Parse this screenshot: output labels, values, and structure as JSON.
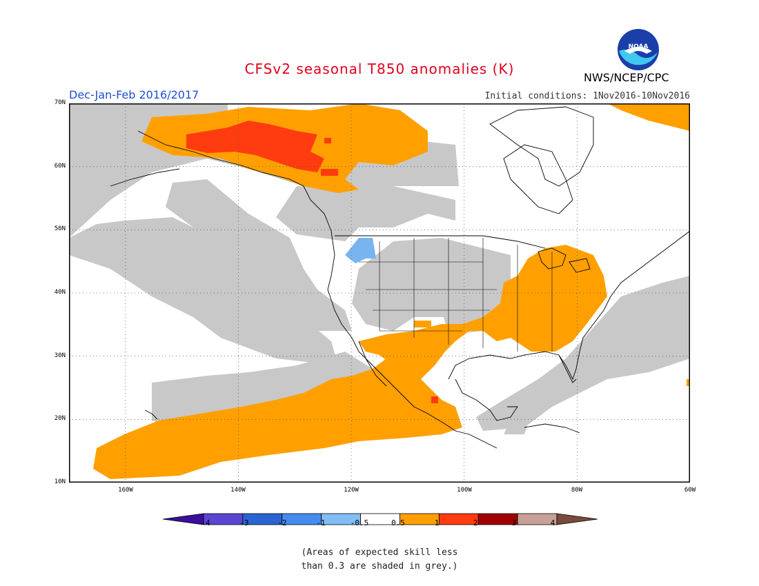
{
  "header": {
    "title": "CFSv2 seasonal T850 anomalies (K)",
    "agency": "NWS/NCEP/CPC",
    "logo_text": "NOAA",
    "period": "Dec-Jan-Feb 2016/2017",
    "initial_conditions": "Initial conditions: 1Nov2016-10Nov2016"
  },
  "map": {
    "lat_labels": [
      "70N",
      "60N",
      "50N",
      "40N",
      "30N",
      "20N",
      "10N"
    ],
    "lon_labels": [
      "160W",
      "140W",
      "120W",
      "100W",
      "80W",
      "60W"
    ],
    "extent": {
      "lon": [
        -170,
        -60
      ],
      "lat": [
        10,
        70
      ]
    },
    "colors": {
      "grey_low_skill": "#c8c8c8",
      "warm_0_5_1": "#ffa000",
      "warm_1_2": "#ff3c10",
      "cool_neg0_5_neg1": "#78b4f0"
    }
  },
  "legend": {
    "labels": [
      "-4",
      "-3",
      "-2",
      "-1",
      "-0.5",
      "0.5",
      "1",
      "2",
      "3",
      "4"
    ],
    "colors": [
      "#3a0fa0",
      "#5a46d2",
      "#2a64d2",
      "#468cf0",
      "#82bef5",
      "#ffffff",
      "#ffa000",
      "#ff3c10",
      "#a00000",
      "#c8a096",
      "#7a4a3a"
    ]
  },
  "note": {
    "line1": "(Areas of expected skill less",
    "line2": "than 0.3 are shaded in grey.)"
  }
}
